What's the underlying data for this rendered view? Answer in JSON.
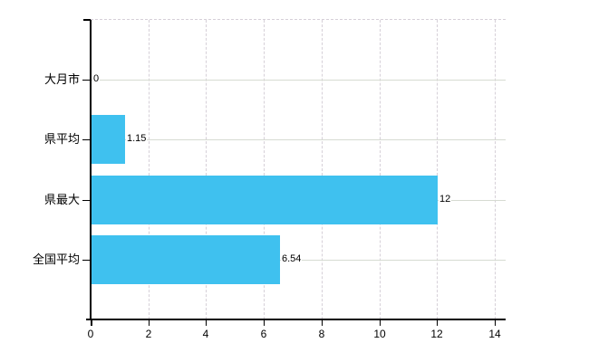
{
  "chart_data": {
    "type": "bar",
    "orientation": "horizontal",
    "title": "",
    "xlabel": "",
    "ylabel": "",
    "categories": [
      "大月市",
      "県平均",
      "県最大",
      "全国平均"
    ],
    "values": [
      0,
      1.15,
      12,
      6.54
    ],
    "value_labels": [
      "0",
      "1.15",
      "12",
      "6.54"
    ],
    "x_ticks": [
      "0",
      "2",
      "4",
      "6",
      "8",
      "10",
      "12",
      "14"
    ],
    "x_tick_values": [
      0,
      2,
      4,
      6,
      8,
      10,
      12,
      14
    ],
    "xlim": [
      0,
      14
    ],
    "legend": "none",
    "grid": "vertical dashed gridlines at x ticks; solid horizontal gridline at each category row; dashed top border"
  },
  "colors": {
    "background": "#ffffff",
    "bar": "#3fc1ef",
    "axis": "#000000",
    "text": "#000000",
    "gridline_vertical": "#d6d0d8",
    "gridline_horizontal": "#d6dbd2"
  }
}
